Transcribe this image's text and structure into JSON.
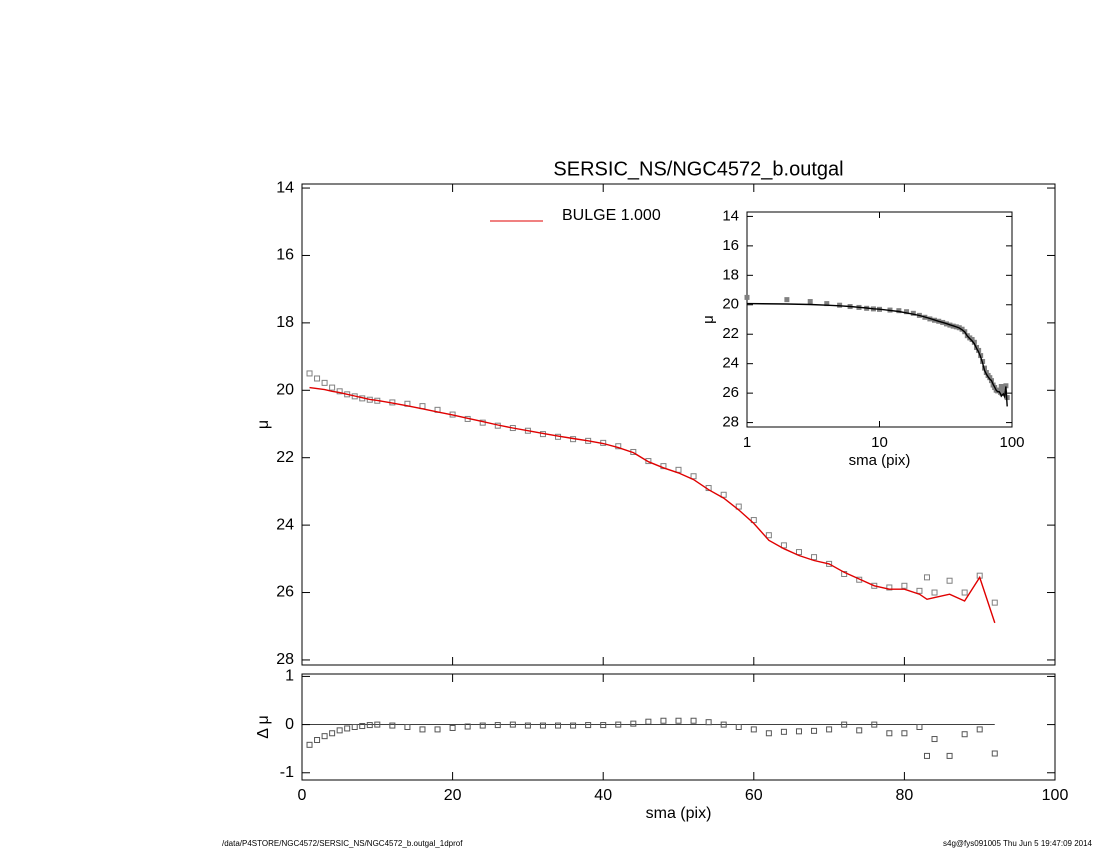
{
  "chart_data": [
    {
      "type": "scatter",
      "title": "SERSIC_NS/NGC4572_b.outgal",
      "ylabel": "μ",
      "xlim": [
        0,
        100
      ],
      "ylim": [
        28.15,
        13.88
      ],
      "xticks": [
        0,
        20,
        40,
        60,
        80,
        100
      ],
      "show_xtick_labels": false,
      "yticks": [
        14,
        16,
        18,
        20,
        22,
        24,
        26,
        28
      ],
      "x": [
        1,
        2,
        3,
        4,
        5,
        6,
        7,
        8,
        9,
        10,
        12,
        14,
        16,
        18,
        20,
        22,
        24,
        26,
        28,
        30,
        32,
        34,
        36,
        38,
        40,
        42,
        44,
        46,
        48,
        50,
        52,
        54,
        56,
        58,
        60,
        62,
        64,
        66,
        68,
        70,
        72,
        74,
        76,
        78,
        80,
        82,
        83,
        84,
        86,
        88,
        90,
        92
      ],
      "series": [
        {
          "color": "#808080",
          "style": "markers",
          "values": [
            19.5,
            19.65,
            19.78,
            19.92,
            20.03,
            20.12,
            20.18,
            20.24,
            20.28,
            20.31,
            20.36,
            20.4,
            20.47,
            20.58,
            20.72,
            20.85,
            20.96,
            21.05,
            21.12,
            21.2,
            21.3,
            21.38,
            21.45,
            21.5,
            21.56,
            21.66,
            21.83,
            22.1,
            22.25,
            22.36,
            22.55,
            22.9,
            23.1,
            23.45,
            23.85,
            24.3,
            24.6,
            24.8,
            24.95,
            25.15,
            25.45,
            25.62,
            25.8,
            25.85,
            25.8,
            25.95,
            25.55,
            26.0,
            25.65,
            26.0,
            25.5,
            26.3
          ]
        },
        {
          "name": "BULGE  1.000",
          "color": "#e00000",
          "style": "line",
          "values": [
            19.92,
            19.95,
            19.98,
            20.03,
            20.07,
            20.12,
            20.17,
            20.22,
            20.27,
            20.3,
            20.38,
            20.46,
            20.55,
            20.64,
            20.73,
            20.83,
            20.93,
            21.03,
            21.12,
            21.2,
            21.28,
            21.36,
            21.43,
            21.5,
            21.58,
            21.7,
            21.85,
            22.12,
            22.3,
            22.45,
            22.65,
            22.95,
            23.2,
            23.55,
            23.95,
            24.45,
            24.7,
            24.9,
            25.05,
            25.15,
            25.4,
            25.6,
            25.8,
            25.9,
            25.9,
            26.05,
            26.2,
            26.15,
            26.05,
            26.25,
            25.55,
            26.9
          ]
        }
      ]
    },
    {
      "type": "scatter",
      "xlabel": "sma (pix)",
      "ylabel": "Δ μ",
      "xlim": [
        0,
        100
      ],
      "ylim": [
        -1.15,
        1.05
      ],
      "xticks": [
        0,
        20,
        40,
        60,
        80,
        100
      ],
      "yticks": [
        -1,
        0,
        1
      ],
      "hline": 0,
      "x": [
        1,
        2,
        3,
        4,
        5,
        6,
        7,
        8,
        9,
        10,
        12,
        14,
        16,
        18,
        20,
        22,
        24,
        26,
        28,
        30,
        32,
        34,
        36,
        38,
        40,
        42,
        44,
        46,
        48,
        50,
        52,
        54,
        56,
        58,
        60,
        62,
        64,
        66,
        68,
        70,
        72,
        74,
        76,
        78,
        80,
        82,
        83,
        84,
        86,
        88,
        90,
        92
      ],
      "series": [
        {
          "color": "#555555",
          "style": "markers",
          "values": [
            -0.42,
            -0.32,
            -0.24,
            -0.18,
            -0.12,
            -0.08,
            -0.05,
            -0.03,
            -0.01,
            0,
            -0.02,
            -0.05,
            -0.1,
            -0.1,
            -0.07,
            -0.04,
            -0.02,
            -0.01,
            0,
            -0.02,
            -0.02,
            -0.02,
            -0.02,
            -0.01,
            -0.01,
            0,
            0.02,
            0.06,
            0.08,
            0.08,
            0.08,
            0.05,
            0,
            -0.05,
            -0.1,
            -0.18,
            -0.15,
            -0.14,
            -0.13,
            -0.1,
            0,
            -0.12,
            0,
            -0.18,
            -0.18,
            -0.05,
            -0.65,
            -0.3,
            -0.65,
            -0.2,
            -0.1,
            -0.6
          ]
        }
      ]
    },
    {
      "type": "scatter",
      "xlabel": "sma (pix)",
      "ylabel": "μ",
      "xscale": "log",
      "xlim": [
        1,
        100
      ],
      "ylim": [
        28.3,
        13.7
      ],
      "xticks": [
        1,
        10,
        100
      ],
      "yticks": [
        14,
        16,
        18,
        20,
        22,
        24,
        26,
        28
      ],
      "x": [
        1,
        2,
        3,
        4,
        5,
        6,
        7,
        8,
        9,
        10,
        12,
        14,
        16,
        18,
        20,
        22,
        24,
        26,
        28,
        30,
        32,
        34,
        36,
        38,
        40,
        42,
        44,
        46,
        48,
        50,
        52,
        54,
        56,
        58,
        60,
        62,
        64,
        66,
        68,
        70,
        72,
        74,
        76,
        78,
        80,
        82,
        83,
        84,
        86,
        88,
        90,
        92
      ],
      "series": [
        {
          "color": "#808080",
          "style": "markers",
          "values": [
            19.5,
            19.65,
            19.78,
            19.92,
            20.03,
            20.12,
            20.18,
            20.24,
            20.28,
            20.31,
            20.36,
            20.4,
            20.47,
            20.58,
            20.72,
            20.85,
            20.96,
            21.05,
            21.12,
            21.2,
            21.3,
            21.38,
            21.45,
            21.5,
            21.56,
            21.66,
            21.83,
            22.1,
            22.25,
            22.36,
            22.55,
            22.9,
            23.1,
            23.45,
            23.85,
            24.3,
            24.6,
            24.8,
            24.95,
            25.15,
            25.45,
            25.62,
            25.8,
            25.85,
            25.8,
            25.95,
            25.55,
            26.0,
            25.65,
            26.0,
            25.5,
            26.3
          ]
        },
        {
          "color": "#000000",
          "style": "line",
          "values": [
            19.92,
            19.95,
            19.98,
            20.03,
            20.07,
            20.12,
            20.17,
            20.22,
            20.27,
            20.3,
            20.38,
            20.46,
            20.55,
            20.64,
            20.73,
            20.83,
            20.93,
            21.03,
            21.12,
            21.2,
            21.28,
            21.36,
            21.43,
            21.5,
            21.58,
            21.7,
            21.85,
            22.12,
            22.3,
            22.45,
            22.65,
            22.95,
            23.2,
            23.55,
            23.95,
            24.45,
            24.7,
            24.9,
            25.05,
            25.15,
            25.4,
            25.6,
            25.8,
            25.9,
            25.9,
            26.05,
            26.2,
            26.15,
            26.05,
            26.25,
            25.55,
            26.9
          ]
        }
      ]
    }
  ],
  "footer": {
    "left": "/data/P4STORE/NGC4572/SERSIC_NS/NGC4572_b.outgal_1dprof",
    "right": "s4g@fys091005  Thu Jun  5 19:47:09 2014"
  }
}
